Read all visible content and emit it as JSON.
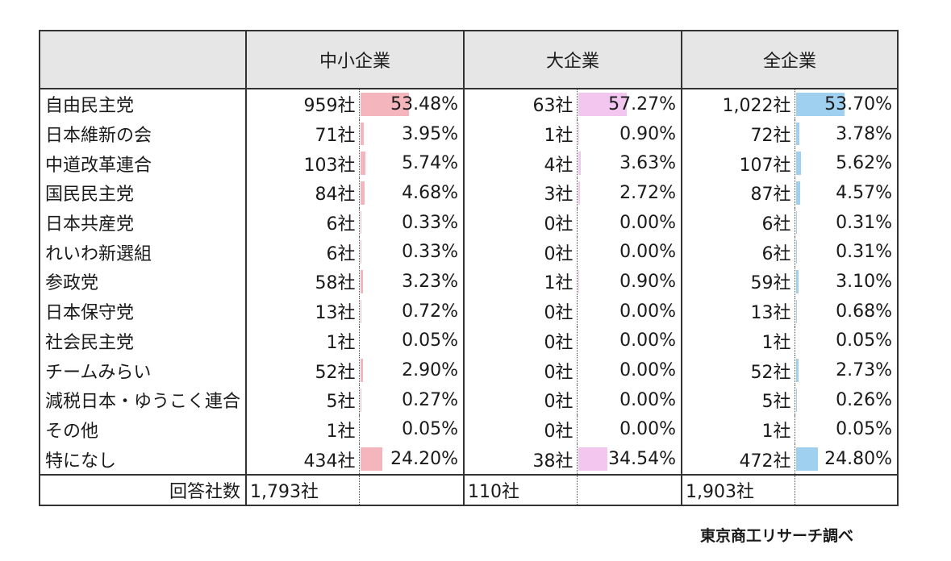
{
  "chart_data": {
    "type": "table",
    "headers": {
      "small": "中小企業",
      "large": "大企業",
      "all": "全企業"
    },
    "colors": {
      "small_bar": "#f5b5bd",
      "large_bar": "#f3c6f0",
      "all_bar": "#9fd0f0",
      "header_bg": "#e6e6e6"
    },
    "rows": [
      {
        "party": "自由民主党",
        "small_count": "959社",
        "small_pct": "53.48%",
        "small_value": 53.48,
        "large_count": "63社",
        "large_pct": "57.27%",
        "large_value": 57.27,
        "all_count": "1,022社",
        "all_pct": "53.70%",
        "all_value": 53.7
      },
      {
        "party": "日本維新の会",
        "small_count": "71社",
        "small_pct": "3.95%",
        "small_value": 3.95,
        "large_count": "1社",
        "large_pct": "0.90%",
        "large_value": 0.9,
        "all_count": "72社",
        "all_pct": "3.78%",
        "all_value": 3.78
      },
      {
        "party": "中道改革連合",
        "small_count": "103社",
        "small_pct": "5.74%",
        "small_value": 5.74,
        "large_count": "4社",
        "large_pct": "3.63%",
        "large_value": 3.63,
        "all_count": "107社",
        "all_pct": "5.62%",
        "all_value": 5.62
      },
      {
        "party": "国民民主党",
        "small_count": "84社",
        "small_pct": "4.68%",
        "small_value": 4.68,
        "large_count": "3社",
        "large_pct": "2.72%",
        "large_value": 2.72,
        "all_count": "87社",
        "all_pct": "4.57%",
        "all_value": 4.57
      },
      {
        "party": "日本共産党",
        "small_count": "6社",
        "small_pct": "0.33%",
        "small_value": 0.33,
        "large_count": "0社",
        "large_pct": "0.00%",
        "large_value": 0.0,
        "all_count": "6社",
        "all_pct": "0.31%",
        "all_value": 0.31
      },
      {
        "party": "れいわ新選組",
        "small_count": "6社",
        "small_pct": "0.33%",
        "small_value": 0.33,
        "large_count": "0社",
        "large_pct": "0.00%",
        "large_value": 0.0,
        "all_count": "6社",
        "all_pct": "0.31%",
        "all_value": 0.31
      },
      {
        "party": "参政党",
        "small_count": "58社",
        "small_pct": "3.23%",
        "small_value": 3.23,
        "large_count": "1社",
        "large_pct": "0.90%",
        "large_value": 0.9,
        "all_count": "59社",
        "all_pct": "3.10%",
        "all_value": 3.1
      },
      {
        "party": "日本保守党",
        "small_count": "13社",
        "small_pct": "0.72%",
        "small_value": 0.72,
        "large_count": "0社",
        "large_pct": "0.00%",
        "large_value": 0.0,
        "all_count": "13社",
        "all_pct": "0.68%",
        "all_value": 0.68
      },
      {
        "party": "社会民主党",
        "small_count": "1社",
        "small_pct": "0.05%",
        "small_value": 0.05,
        "large_count": "0社",
        "large_pct": "0.00%",
        "large_value": 0.0,
        "all_count": "1社",
        "all_pct": "0.05%",
        "all_value": 0.05
      },
      {
        "party": "チームみらい",
        "small_count": "52社",
        "small_pct": "2.90%",
        "small_value": 2.9,
        "large_count": "0社",
        "large_pct": "0.00%",
        "large_value": 0.0,
        "all_count": "52社",
        "all_pct": "2.73%",
        "all_value": 2.73
      },
      {
        "party": "減税日本・ゆうこく連合",
        "small_count": "5社",
        "small_pct": "0.27%",
        "small_value": 0.27,
        "large_count": "0社",
        "large_pct": "0.00%",
        "large_value": 0.0,
        "all_count": "5社",
        "all_pct": "0.26%",
        "all_value": 0.26
      },
      {
        "party": "その他",
        "small_count": "1社",
        "small_pct": "0.05%",
        "small_value": 0.05,
        "large_count": "0社",
        "large_pct": "0.00%",
        "large_value": 0.0,
        "all_count": "1社",
        "all_pct": "0.05%",
        "all_value": 0.05
      },
      {
        "party": "特になし",
        "small_count": "434社",
        "small_pct": "24.20%",
        "small_value": 24.2,
        "large_count": "38社",
        "large_pct": "34.54%",
        "large_value": 34.54,
        "all_count": "472社",
        "all_pct": "24.80%",
        "all_value": 24.8
      }
    ],
    "total": {
      "label": "回答社数",
      "small": "1,793社",
      "large": "110社",
      "all": "1,903社"
    }
  },
  "source": "東京商工リサーチ調べ"
}
